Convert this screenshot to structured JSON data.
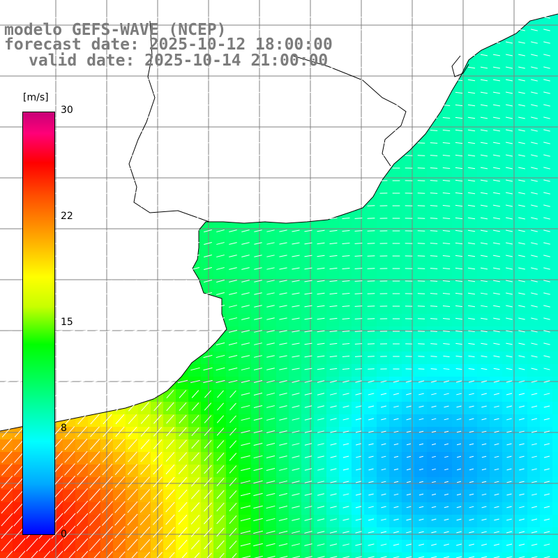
{
  "title": {
    "line1": "modelo GEFS-WAVE (NCEP)",
    "line2": "forecast date: 2025-10-12 18:00:00",
    "line3": "valid date: 2025-10-14 21:00:00"
  },
  "colorbar": {
    "unit": "[m/s]",
    "ticks": [
      "30",
      "22",
      "15",
      "8",
      "0"
    ],
    "tick_values": [
      30,
      22,
      15,
      8,
      0
    ],
    "range": [
      0,
      30
    ],
    "colors": [
      "#0000ff",
      "#00aaff",
      "#00ffff",
      "#00ff60",
      "#00ff00",
      "#c8ff00",
      "#ffff00",
      "#ffaa00",
      "#ff5000",
      "#ff0000",
      "#ff0078",
      "#c80078"
    ]
  },
  "map": {
    "grid_color": "#808080",
    "land_color": "#ffffff",
    "vector_color": "#ffffff",
    "wind_field": {
      "strong_region": "southwest",
      "calm_region": "southeast",
      "dominant_direction": "onshore from the east, turning northeast-to-southwest in the south"
    }
  }
}
